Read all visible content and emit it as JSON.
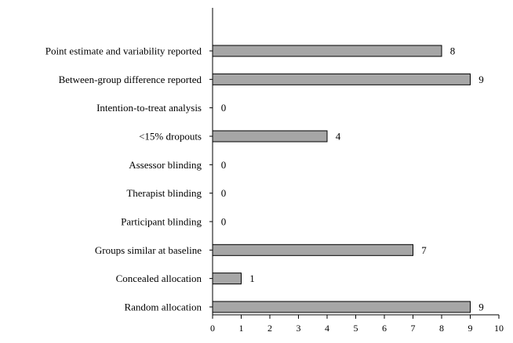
{
  "chart_data": {
    "type": "bar",
    "orientation": "horizontal",
    "title": "",
    "xlabel": "",
    "ylabel": "",
    "categories": [
      "Point estimate and variability  reported",
      "Between-group difference reported",
      "Intention-to-treat analysis",
      "<15% dropouts",
      "Assessor blinding",
      "Therapist blinding",
      "Participant blinding",
      "Groups similar  at baseline",
      "Concealed allocation",
      "Random allocation"
    ],
    "values": [
      8,
      9,
      0,
      4,
      0,
      0,
      0,
      7,
      1,
      9
    ],
    "data_labels": [
      "8",
      "9",
      "0",
      "4",
      "0",
      "0",
      "0",
      "7",
      "1",
      "9"
    ],
    "xlim": [
      0,
      10
    ],
    "x_ticks": [
      "0",
      "1",
      "2",
      "3",
      "4",
      "5",
      "6",
      "7",
      "8",
      "9",
      "10"
    ],
    "grid": false,
    "legend": "none",
    "colors": {
      "bar_fill": "#a6a6a6",
      "bar_stroke": "#000000",
      "axis": "#000000",
      "text": "#000000"
    }
  }
}
